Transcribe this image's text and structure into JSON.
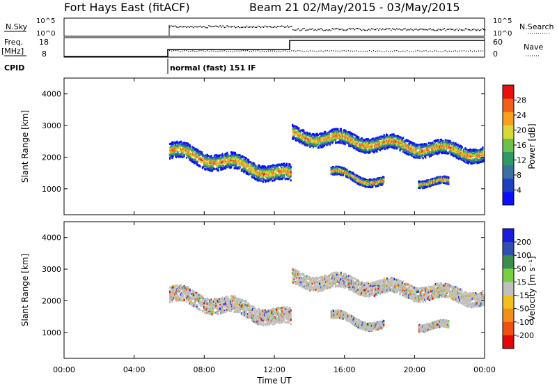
{
  "header": {
    "radar": "Fort Hays East (fitACF)",
    "beam_dates": "Beam 21  02/May/2015 - 03/May/2015"
  },
  "top_panel": {
    "nsky_label": "N.Sky",
    "nsky_ticks": [
      "10^5",
      "10^0"
    ],
    "nsearch_label": "N.Search",
    "nsearch_ticks": [
      "10^5",
      "10^0"
    ],
    "freq_label": "Freq.",
    "freq_unit": "[MHz]",
    "freq_ticks": [
      "18",
      "8"
    ],
    "nave_label": "Nave",
    "nave_ticks": [
      "60",
      "0"
    ],
    "cpid_label": "CPID",
    "cpid_value": "normal (fast) 151 IF"
  },
  "chart_data": [
    {
      "type": "heatmap",
      "quantity": "Power",
      "ylabel": "Slant Range [km]",
      "xlabel": "Time UT",
      "x_ticks": [
        "00:00",
        "04:00",
        "08:00",
        "12:00",
        "16:00",
        "20:00",
        "00:00"
      ],
      "y_ticks": [
        1000,
        2000,
        3000,
        4000
      ],
      "ylim": [
        180,
        4500
      ],
      "xlim_hours": [
        0,
        24
      ],
      "colorbar": {
        "label": "Power [dB]",
        "ticks": [
          "4",
          "8",
          "12",
          "16",
          "20",
          "24",
          "28"
        ],
        "range": [
          0,
          30
        ],
        "colors": [
          "#0a10ff",
          "#2040c0",
          "#3c70a0",
          "#2f9a66",
          "#6cc04c",
          "#d8d83a",
          "#f7a020",
          "#f06018",
          "#e81010"
        ]
      },
      "echo_bands": [
        {
          "t_start": 6.0,
          "t_end": 12.9,
          "range_start": 2200,
          "range_end": 1400,
          "width": 500
        },
        {
          "t_start": 13.0,
          "t_end": 23.9,
          "range_start": 2700,
          "range_end": 2100,
          "width": 450
        },
        {
          "t_start": 15.2,
          "t_end": 18.2,
          "range_start": 1500,
          "range_end": 1200,
          "width": 250
        },
        {
          "t_start": 20.2,
          "t_end": 21.9,
          "range_start": 1250,
          "range_end": 1150,
          "width": 220
        }
      ]
    },
    {
      "type": "heatmap",
      "quantity": "Velocity",
      "ylabel": "Slant Range [km]",
      "xlabel": "Time UT",
      "x_ticks": [
        "00:00",
        "04:00",
        "08:00",
        "12:00",
        "16:00",
        "20:00",
        "00:00"
      ],
      "y_ticks": [
        1000,
        2000,
        3000,
        4000
      ],
      "ylim": [
        180,
        4500
      ],
      "colorbar": {
        "label": "Velocity [m s⁻¹]",
        "ticks": [
          "200",
          "100",
          "50",
          "15",
          "-15",
          "-50",
          "-100",
          "-200"
        ],
        "colors": [
          "#1a1ae0",
          "#3050b0",
          "#3c8c50",
          "#78d040",
          "#c0c0c0",
          "#f0c020",
          "#f0901a",
          "#f05010",
          "#e00808"
        ]
      }
    }
  ]
}
